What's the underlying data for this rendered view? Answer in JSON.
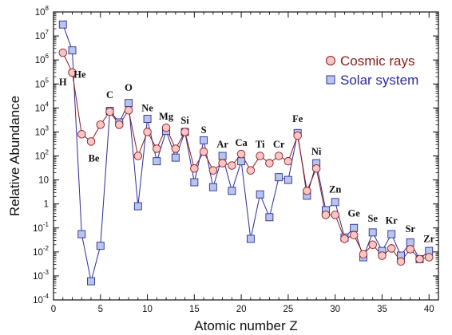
{
  "chart_data": {
    "type": "line",
    "xlabel": "Atomic number Z",
    "ylabel": "Relative Abundance",
    "xlim": [
      0,
      41
    ],
    "ylim_exponent": [
      -4,
      8
    ],
    "y_scale": "log",
    "x_ticks": [
      0,
      5,
      10,
      15,
      20,
      25,
      30,
      35,
      40
    ],
    "y_ticks": [
      {
        "exp": -4,
        "base": "10",
        "sup": "-4"
      },
      {
        "exp": -3,
        "base": "10",
        "sup": "-3"
      },
      {
        "exp": -2,
        "base": "10",
        "sup": "-2"
      },
      {
        "exp": -1,
        "base": "10",
        "sup": "-1"
      },
      {
        "exp": 0,
        "base": "1",
        "sup": ""
      },
      {
        "exp": 1,
        "base": "10",
        "sup": ""
      },
      {
        "exp": 2,
        "base": "10",
        "sup": "2"
      },
      {
        "exp": 3,
        "base": "10",
        "sup": "3"
      },
      {
        "exp": 4,
        "base": "10",
        "sup": "4"
      },
      {
        "exp": 5,
        "base": "10",
        "sup": "5"
      },
      {
        "exp": 6,
        "base": "10",
        "sup": "6"
      },
      {
        "exp": 7,
        "base": "10",
        "sup": "7"
      },
      {
        "exp": 8,
        "base": "10",
        "sup": "8"
      }
    ],
    "legend_position": "top-right",
    "series": [
      {
        "name": "Cosmic rays",
        "marker": "circle",
        "line_color": "#8b1a1a",
        "fill_color": "#f7c6c6",
        "stroke_color": "#8b1a1a",
        "x": [
          1,
          2,
          3,
          4,
          5,
          6,
          7,
          8,
          9,
          10,
          11,
          12,
          13,
          14,
          15,
          16,
          17,
          18,
          19,
          20,
          21,
          22,
          23,
          24,
          25,
          26,
          27,
          28,
          29,
          30,
          31,
          32,
          33,
          34,
          35,
          36,
          37,
          38,
          39,
          40
        ],
        "y": [
          2000000,
          300000,
          800,
          400,
          2000,
          7000,
          2000,
          8000,
          100,
          1000,
          200,
          1500,
          200,
          1000,
          30,
          150,
          25,
          50,
          40,
          120,
          25,
          100,
          50,
          100,
          60,
          700,
          3.5,
          30,
          0.35,
          0.35,
          0.035,
          0.05,
          0.008,
          0.02,
          0.007,
          0.014,
          0.004,
          0.013,
          0.005,
          0.006
        ]
      },
      {
        "name": "Solar system",
        "marker": "square",
        "line_color": "#2b2b9a",
        "fill_color": "#b8c6ea",
        "stroke_color": "#2b2b9a",
        "x": [
          1,
          2,
          3,
          4,
          5,
          6,
          7,
          8,
          9,
          10,
          11,
          12,
          13,
          14,
          15,
          16,
          17,
          18,
          19,
          20,
          21,
          22,
          23,
          24,
          25,
          26,
          27,
          28,
          29,
          30,
          31,
          32,
          33,
          34,
          35,
          36,
          37,
          38,
          39,
          40
        ],
        "y": [
          30000000,
          2500000,
          0.055,
          0.0006,
          0.018,
          7500,
          2500,
          16000,
          0.8,
          3500,
          60,
          1100,
          85,
          1000,
          8,
          450,
          5,
          100,
          3.5,
          60,
          0.035,
          2.5,
          0.28,
          13,
          10,
          900,
          2.2,
          50,
          0.55,
          1.2,
          0.04,
          0.1,
          0.006,
          0.065,
          0.011,
          0.055,
          0.007,
          0.025,
          0.005,
          0.011
        ]
      }
    ],
    "annotations": [
      {
        "text": "H",
        "z": 1,
        "y": 120000
      },
      {
        "text": "He",
        "z": 2.8,
        "y": 250000
      },
      {
        "text": "Be",
        "z": 4.3,
        "y": 80
      },
      {
        "text": "C",
        "z": 6,
        "y": 35000
      },
      {
        "text": "O",
        "z": 8,
        "y": 70000
      },
      {
        "text": "Ne",
        "z": 10,
        "y": 10000
      },
      {
        "text": "Mg",
        "z": 12,
        "y": 4500
      },
      {
        "text": "Si",
        "z": 14,
        "y": 3000
      },
      {
        "text": "S",
        "z": 16,
        "y": 1200
      },
      {
        "text": "Ar",
        "z": 18,
        "y": 300
      },
      {
        "text": "Ca",
        "z": 20,
        "y": 350
      },
      {
        "text": "Ti",
        "z": 22,
        "y": 300
      },
      {
        "text": "Cr",
        "z": 24,
        "y": 300
      },
      {
        "text": "Fe",
        "z": 26,
        "y": 3500
      },
      {
        "text": "Ni",
        "z": 28,
        "y": 150
      },
      {
        "text": "Zn",
        "z": 30,
        "y": 4
      },
      {
        "text": "Ge",
        "z": 32,
        "y": 0.4
      },
      {
        "text": "Se",
        "z": 34,
        "y": 0.25
      },
      {
        "text": "Kr",
        "z": 36,
        "y": 0.2
      },
      {
        "text": "Sr",
        "z": 38,
        "y": 0.09
      },
      {
        "text": "Zr",
        "z": 40,
        "y": 0.035
      }
    ]
  }
}
